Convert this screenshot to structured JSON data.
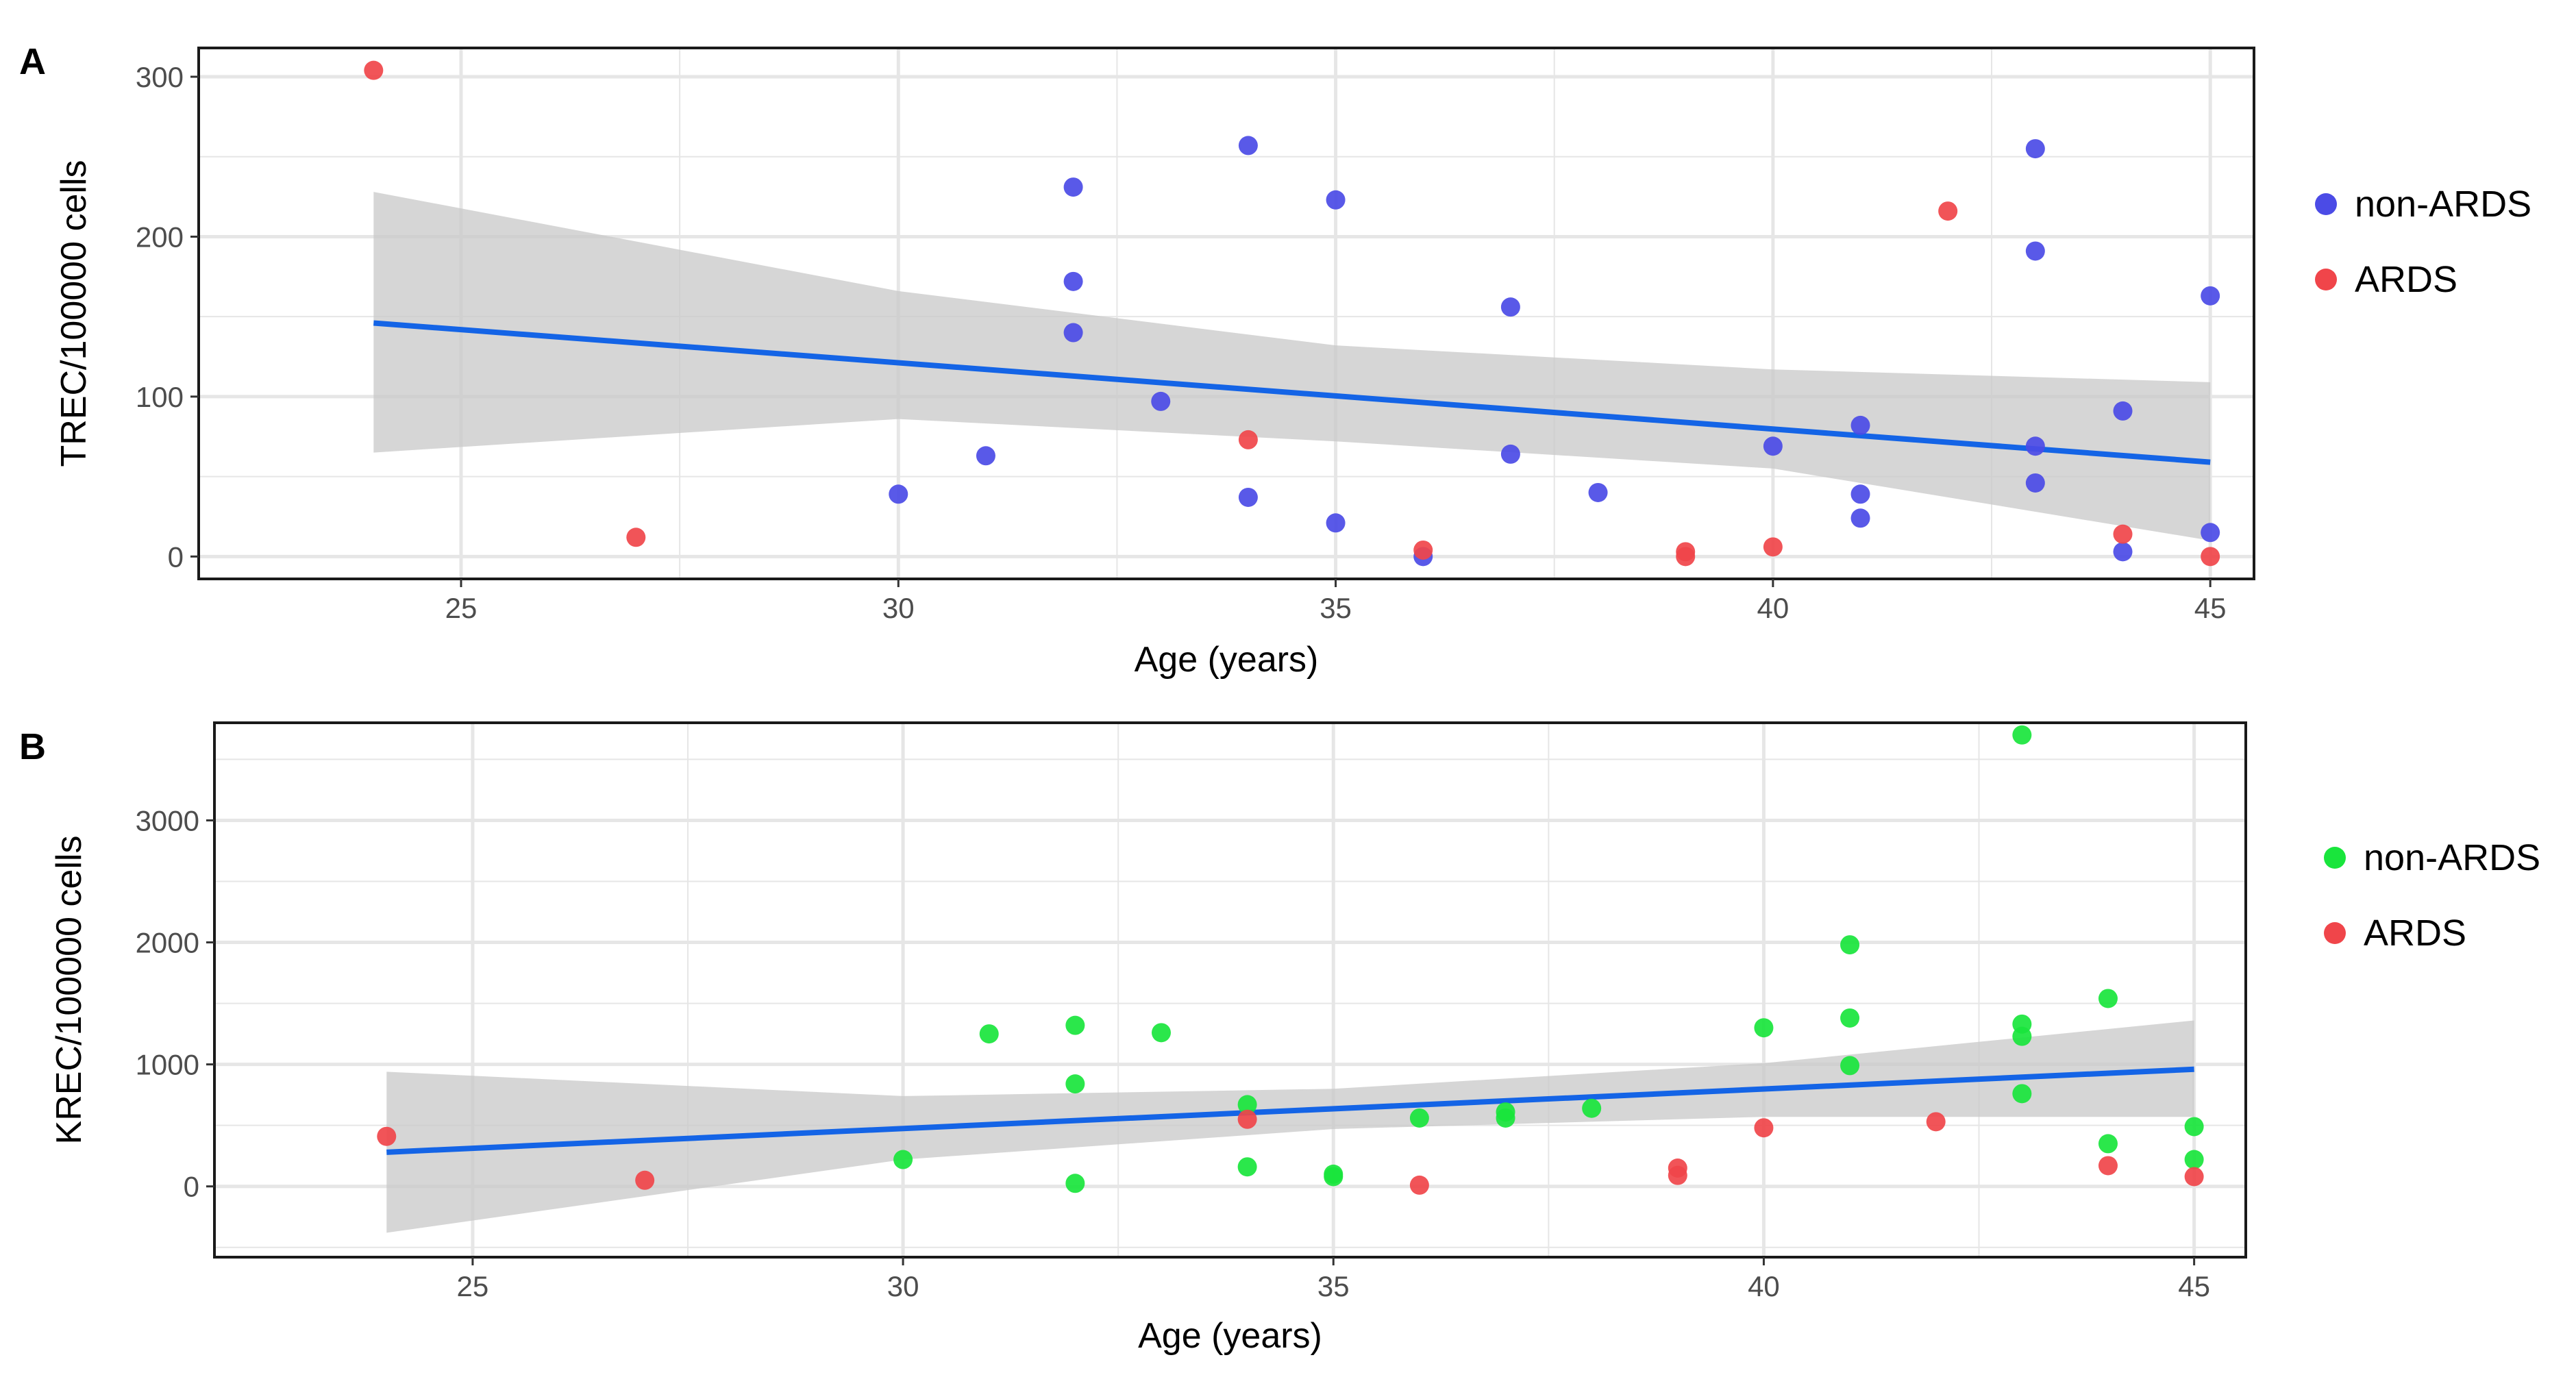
{
  "colors": {
    "non_ards_a": "#4b4be6",
    "non_ards_b": "#19e53c",
    "ards": "#f0454a",
    "fit_line": "#1464e6",
    "ribbon": "#c8c8c8",
    "grid": "#e6e6e6",
    "axis_text": "#4d4d4d"
  },
  "panels": {
    "a": {
      "label": "A"
    },
    "b": {
      "label": "B"
    }
  },
  "chart_data": [
    {
      "type": "scatter",
      "panel": "A",
      "xlabel": "Age (years)",
      "ylabel": "TREC/100000 cells",
      "xlim": [
        22,
        45.5
      ],
      "ylim": [
        -14,
        318
      ],
      "x_ticks": [
        25,
        30,
        35,
        40,
        45
      ],
      "y_ticks": [
        0,
        100,
        200,
        300
      ],
      "grid": true,
      "legend_position": "right",
      "legend": [
        {
          "name": "non-ARDS",
          "color": "#4b4be6"
        },
        {
          "name": "ARDS",
          "color": "#f0454a"
        }
      ],
      "series": [
        {
          "name": "non-ARDS",
          "color": "#4b4be6",
          "points": [
            [
              30,
              39
            ],
            [
              31,
              63
            ],
            [
              32,
              231
            ],
            [
              32,
              172
            ],
            [
              32,
              140
            ],
            [
              33,
              97
            ],
            [
              34,
              257
            ],
            [
              34,
              37
            ],
            [
              35,
              223
            ],
            [
              35,
              21
            ],
            [
              36,
              0
            ],
            [
              37,
              156
            ],
            [
              37,
              64
            ],
            [
              38,
              40
            ],
            [
              40,
              69
            ],
            [
              41,
              82
            ],
            [
              41,
              39
            ],
            [
              41,
              24
            ],
            [
              43,
              255
            ],
            [
              43,
              191
            ],
            [
              43,
              69
            ],
            [
              43,
              46
            ],
            [
              44,
              91
            ],
            [
              44,
              3
            ],
            [
              45,
              163
            ],
            [
              45,
              15
            ]
          ]
        },
        {
          "name": "ARDS",
          "color": "#f0454a",
          "points": [
            [
              24,
              304
            ],
            [
              27,
              12
            ],
            [
              34,
              73
            ],
            [
              36,
              4
            ],
            [
              39,
              3
            ],
            [
              39,
              0
            ],
            [
              40,
              6
            ],
            [
              42,
              216
            ],
            [
              44,
              14
            ],
            [
              45,
              0
            ]
          ]
        }
      ],
      "trend": {
        "x": [
          24,
          45
        ],
        "y": [
          146,
          59
        ],
        "ribbon": [
          [
            24,
            65,
            228
          ],
          [
            30,
            86,
            166
          ],
          [
            35,
            72,
            132
          ],
          [
            40,
            55,
            117
          ],
          [
            45,
            10,
            109
          ]
        ]
      }
    },
    {
      "type": "scatter",
      "panel": "B",
      "xlabel": "Age (years)",
      "ylabel": "KREC/100000 cells",
      "xlim": [
        22,
        45.6
      ],
      "ylim": [
        -580,
        3800
      ],
      "x_ticks": [
        25,
        30,
        35,
        40,
        45
      ],
      "y_ticks": [
        0,
        1000,
        2000,
        3000
      ],
      "grid": true,
      "legend_position": "right",
      "legend": [
        {
          "name": "non-ARDS",
          "color": "#19e53c"
        },
        {
          "name": "ARDS",
          "color": "#f0454a"
        }
      ],
      "series": [
        {
          "name": "non-ARDS",
          "color": "#19e53c",
          "points": [
            [
              30,
              220
            ],
            [
              31,
              1250
            ],
            [
              32,
              1320
            ],
            [
              32,
              840
            ],
            [
              32,
              25
            ],
            [
              33,
              1260
            ],
            [
              34,
              670
            ],
            [
              34,
              160
            ],
            [
              35,
              100
            ],
            [
              35,
              80
            ],
            [
              36,
              560
            ],
            [
              37,
              610
            ],
            [
              37,
              560
            ],
            [
              38,
              640
            ],
            [
              40,
              1300
            ],
            [
              41,
              1980
            ],
            [
              41,
              1380
            ],
            [
              41,
              990
            ],
            [
              43,
              3700
            ],
            [
              43,
              1330
            ],
            [
              43,
              1230
            ],
            [
              43,
              760
            ],
            [
              44,
              1540
            ],
            [
              44,
              350
            ],
            [
              45,
              490
            ],
            [
              45,
              220
            ]
          ]
        },
        {
          "name": "ARDS",
          "color": "#f0454a",
          "points": [
            [
              24,
              410
            ],
            [
              27,
              50
            ],
            [
              34,
              550
            ],
            [
              36,
              10
            ],
            [
              39,
              150
            ],
            [
              39,
              90
            ],
            [
              40,
              480
            ],
            [
              42,
              530
            ],
            [
              44,
              170
            ],
            [
              45,
              80
            ]
          ]
        }
      ],
      "trend": {
        "x": [
          24,
          45
        ],
        "y": [
          280,
          960
        ],
        "ribbon": [
          [
            24,
            -380,
            940
          ],
          [
            30,
            220,
            740
          ],
          [
            35,
            470,
            800
          ],
          [
            40,
            570,
            1010
          ],
          [
            45,
            570,
            1360
          ]
        ]
      }
    }
  ]
}
